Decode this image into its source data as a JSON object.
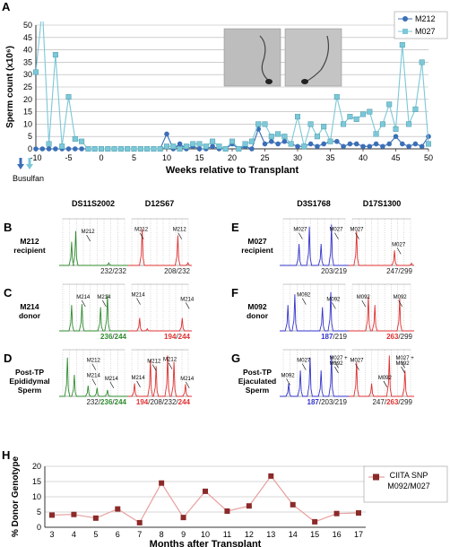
{
  "panel_letters": [
    "A",
    "B",
    "C",
    "D",
    "E",
    "F",
    "G",
    "H"
  ],
  "columns": {
    "left1": "DS11S2002",
    "left2": "D12S67",
    "right1": "D3S1768",
    "right2": "D17S1300"
  },
  "rows": {
    "B": {
      "l1": "M212",
      "l2": "recipient"
    },
    "C": {
      "l1": "M214",
      "l2": "donor"
    },
    "D": {
      "l1": "Post-TP",
      "l2": "Epididymal",
      "l3": "Sperm"
    },
    "E": {
      "l1": "M027",
      "l2": "recipient"
    },
    "F": {
      "l1": "M092",
      "l2": "donor"
    },
    "G": {
      "l1": "Post-TP",
      "l2": "Ejaculated",
      "l3": "Sperm"
    }
  },
  "colors": {
    "green": "#2e8b2e",
    "red": "#e03030",
    "blue": "#3333cc",
    "m212": "#3b6fb6",
    "m027": "#7cc8d8",
    "ciita": "#8b2a2a",
    "ciita_line": "#e8a0a0"
  },
  "chart_data": [
    {
      "type": "line",
      "panel": "A",
      "xlabel": "Weeks relative to Transplant",
      "ylabel": "Sperm count (x10⁶)",
      "xlim": [
        -10,
        50
      ],
      "ylim": [
        0,
        50
      ],
      "xticks": [
        -10,
        -5,
        0,
        5,
        10,
        15,
        20,
        25,
        30,
        35,
        40,
        45,
        50
      ],
      "yticks": [
        0,
        5,
        10,
        15,
        20,
        25,
        30,
        35,
        40,
        45,
        50
      ],
      "grid": true,
      "legend": "top-right",
      "annotation": "Busulfan",
      "series": [
        {
          "name": "M212",
          "x": [
            -10,
            -9,
            -8,
            -7,
            -6,
            -5,
            -4,
            -3,
            -2,
            -1,
            0,
            1,
            2,
            3,
            4,
            5,
            6,
            7,
            8,
            9,
            10,
            11,
            12,
            13,
            14,
            15,
            16,
            17,
            18,
            19,
            20,
            21,
            22,
            23,
            24,
            25,
            26,
            27,
            28,
            29,
            30,
            31,
            32,
            33,
            34,
            35,
            36,
            37,
            38,
            39,
            40,
            41,
            42,
            43,
            44,
            45,
            46,
            47,
            48,
            49,
            50
          ],
          "y": [
            0,
            0,
            0,
            0,
            0,
            0,
            0,
            0,
            0,
            0,
            0,
            0,
            0,
            0,
            0,
            0,
            0,
            0,
            0,
            0,
            6,
            0,
            2,
            0,
            1,
            0,
            0,
            1,
            0,
            0,
            2,
            0,
            1,
            0,
            8,
            2,
            3,
            2,
            3,
            2,
            1,
            1,
            2,
            1,
            2,
            3,
            3,
            1,
            2,
            2,
            1,
            1,
            2,
            1,
            2,
            5,
            2,
            1,
            2,
            1,
            5
          ]
        },
        {
          "name": "M027",
          "x": [
            -10,
            -9,
            -8,
            -7,
            -6,
            -5,
            -4,
            -3,
            -2,
            -1,
            0,
            1,
            2,
            3,
            4,
            5,
            6,
            7,
            8,
            9,
            10,
            11,
            12,
            13,
            14,
            15,
            16,
            17,
            18,
            19,
            20,
            21,
            22,
            23,
            24,
            25,
            26,
            27,
            28,
            29,
            30,
            31,
            32,
            33,
            34,
            35,
            36,
            37,
            38,
            39,
            40,
            41,
            42,
            43,
            44,
            45,
            46,
            47,
            48,
            49,
            50
          ],
          "y": [
            31,
            57,
            2,
            38,
            1,
            21,
            4,
            3,
            0,
            0,
            0,
            0,
            0,
            0,
            0,
            0,
            0,
            0,
            0,
            0,
            1,
            1,
            0,
            1,
            2,
            2,
            1,
            3,
            1,
            0,
            3,
            0,
            2,
            3,
            10,
            10,
            5,
            6,
            5,
            2,
            13,
            1,
            10,
            5,
            9,
            3,
            21,
            10,
            13,
            12,
            14,
            15,
            6,
            10,
            18,
            8,
            42,
            10,
            16,
            35,
            2
          ]
        }
      ]
    },
    {
      "type": "line",
      "panel": "H",
      "xlabel": "Months after Transplant",
      "ylabel": "% Donor Genotype",
      "categories": [
        "3",
        "4",
        "5",
        "6",
        "7",
        "8",
        "9",
        "10",
        "11",
        "12",
        "13",
        "14",
        "15",
        "16",
        "17"
      ],
      "ylim": [
        0,
        20
      ],
      "yticks": [
        0,
        5,
        10,
        15,
        20
      ],
      "legend": "top-right",
      "series": [
        {
          "name": "CIITA SNP M092/M027",
          "values": [
            4,
            4.2,
            3,
            6,
            1.5,
            14.5,
            3.2,
            11.8,
            5.3,
            7,
            16.8,
            7.4,
            1.8,
            4.5,
            4.7
          ]
        }
      ]
    },
    {
      "type": "electropherogram",
      "panel": "B",
      "left": [
        {
          "marker": "DS11S2002",
          "color": "green",
          "genotype_parts": [
            {
              "t": "232/232",
              "c": "black"
            }
          ],
          "labels": [
            "M212"
          ]
        },
        {
          "marker": "D12S67",
          "color": "red",
          "genotype_parts": [
            {
              "t": "208/232",
              "c": "black"
            }
          ],
          "labels": [
            "M212",
            "M212"
          ]
        }
      ]
    }
  ],
  "traces": {
    "B": [
      {
        "color": "green",
        "peaks": [
          [
            0.18,
            0.55
          ],
          [
            0.24,
            0.8
          ],
          [
            0.72,
            0.06
          ]
        ],
        "genotype": [
          [
            "232/232",
            "black"
          ]
        ],
        "labels": [
          [
            "M212",
            0.32,
            0.25
          ]
        ]
      },
      {
        "color": "red",
        "peaks": [
          [
            0.22,
            0.85
          ],
          [
            0.78,
            0.7
          ],
          [
            0.94,
            0.06
          ]
        ],
        "genotype": [
          [
            "208/232",
            "black"
          ]
        ],
        "labels": [
          [
            "M212",
            0.1,
            0.2
          ],
          [
            "M212",
            0.7,
            0.2
          ]
        ]
      }
    ],
    "C": [
      {
        "color": "green",
        "peaks": [
          [
            0.18,
            0.6
          ],
          [
            0.33,
            0.62
          ],
          [
            0.6,
            0.55
          ],
          [
            0.7,
            0.85
          ]
        ],
        "genotype": [
          [
            "236",
            "green"
          ],
          [
            "/",
            "black"
          ],
          [
            "244",
            "green"
          ]
        ],
        "labels": [
          [
            "M214",
            0.25,
            0.25
          ],
          [
            "M214",
            0.55,
            0.25
          ]
        ]
      },
      {
        "color": "red",
        "peaks": [
          [
            0.18,
            0.3
          ],
          [
            0.3,
            0.05
          ],
          [
            0.85,
            0.3
          ]
        ],
        "genotype": [
          [
            "194",
            "red"
          ],
          [
            "/",
            "black"
          ],
          [
            "244",
            "red"
          ]
        ],
        "labels": [
          [
            "M214",
            0.05,
            0.2
          ],
          [
            "M214",
            0.82,
            0.3
          ]
        ]
      }
    ],
    "D": [
      {
        "color": "green",
        "peaks": [
          [
            0.12,
            0.9
          ],
          [
            0.22,
            0.5
          ],
          [
            0.42,
            0.25
          ],
          [
            0.55,
            0.2
          ],
          [
            0.7,
            0.15
          ]
        ],
        "genotype": [
          [
            "232/",
            "black"
          ],
          [
            "236",
            "green"
          ],
          [
            "/",
            "black"
          ],
          [
            "244",
            "green"
          ]
        ],
        "labels": [
          [
            "M212",
            0.4,
            0.2
          ],
          [
            "M214",
            0.4,
            0.55
          ],
          [
            "M214",
            0.66,
            0.62
          ]
        ]
      },
      {
        "color": "red",
        "peaks": [
          [
            0.1,
            0.3
          ],
          [
            0.35,
            0.85
          ],
          [
            0.44,
            0.7
          ],
          [
            0.62,
            0.95
          ],
          [
            0.72,
            0.8
          ],
          [
            0.9,
            0.28
          ]
        ],
        "genotype": [
          [
            "194",
            "red"
          ],
          [
            "/208/232/",
            "black"
          ],
          [
            "244",
            "red"
          ]
        ],
        "labels": [
          [
            "M212",
            0.3,
            0.22
          ],
          [
            "M212",
            0.55,
            0.18
          ],
          [
            "M214",
            0.05,
            0.6
          ],
          [
            "M214",
            0.82,
            0.62
          ]
        ]
      }
    ],
    "E": [
      {
        "color": "blue",
        "peaks": [
          [
            0.28,
            0.5
          ],
          [
            0.43,
            0.9
          ],
          [
            0.6,
            0.5
          ],
          [
            0.75,
            0.95
          ]
        ],
        "genotype": [
          [
            "203/219",
            "black"
          ]
        ],
        "labels": [
          [
            "M027",
            0.2,
            0.2
          ],
          [
            "M027",
            0.72,
            0.2
          ]
        ]
      },
      {
        "color": "red",
        "peaks": [
          [
            0.12,
            0.8
          ],
          [
            0.7,
            0.35
          ],
          [
            0.96,
            0.05
          ]
        ],
        "genotype": [
          [
            "247/299",
            "black"
          ]
        ],
        "labels": [
          [
            "M027",
            0.02,
            0.2
          ],
          [
            "M027",
            0.66,
            0.55
          ]
        ]
      }
    ],
    "F": [
      {
        "color": "blue",
        "peaks": [
          [
            0.12,
            0.6
          ],
          [
            0.22,
            0.85
          ],
          [
            0.62,
            0.55
          ],
          [
            0.74,
            0.9
          ]
        ],
        "genotype": [
          [
            "187",
            "blue"
          ],
          [
            "/219",
            "black"
          ]
        ],
        "labels": [
          [
            "M092",
            0.25,
            0.2
          ],
          [
            "M092",
            0.68,
            0.3
          ]
        ]
      },
      {
        "color": "red",
        "peaks": [
          [
            0.3,
            0.8
          ],
          [
            0.4,
            0.6
          ],
          [
            0.78,
            0.75
          ]
        ],
        "genotype": [
          [
            "263",
            "red"
          ],
          [
            "/299",
            "black"
          ]
        ],
        "labels": [
          [
            "M092",
            0.12,
            0.25
          ],
          [
            "M092",
            0.68,
            0.25
          ]
        ]
      }
    ],
    "G": [
      {
        "color": "blue",
        "peaks": [
          [
            0.13,
            0.3
          ],
          [
            0.3,
            0.6
          ],
          [
            0.44,
            0.9
          ],
          [
            0.6,
            0.6
          ],
          [
            0.75,
            0.95
          ]
        ],
        "genotype": [
          [
            "187",
            "blue"
          ],
          [
            "/203/219",
            "black"
          ]
        ],
        "labels": [
          [
            "M092",
            0.02,
            0.55
          ],
          [
            "M027",
            0.25,
            0.2
          ],
          [
            "M027 +",
            0.72,
            0.15
          ],
          [
            "M092",
            0.72,
            0.27
          ]
        ]
      },
      {
        "color": "red",
        "peaks": [
          [
            0.12,
            0.8
          ],
          [
            0.35,
            0.3
          ],
          [
            0.62,
            0.95
          ],
          [
            0.86,
            0.6
          ]
        ],
        "genotype": [
          [
            "247/",
            "black"
          ],
          [
            "263",
            "red"
          ],
          [
            "/299",
            "black"
          ]
        ],
        "labels": [
          [
            "M027",
            0.02,
            0.2
          ],
          [
            "M092",
            0.45,
            0.6
          ],
          [
            "M027 +",
            0.72,
            0.15
          ],
          [
            "M092",
            0.72,
            0.27
          ]
        ]
      }
    ]
  }
}
